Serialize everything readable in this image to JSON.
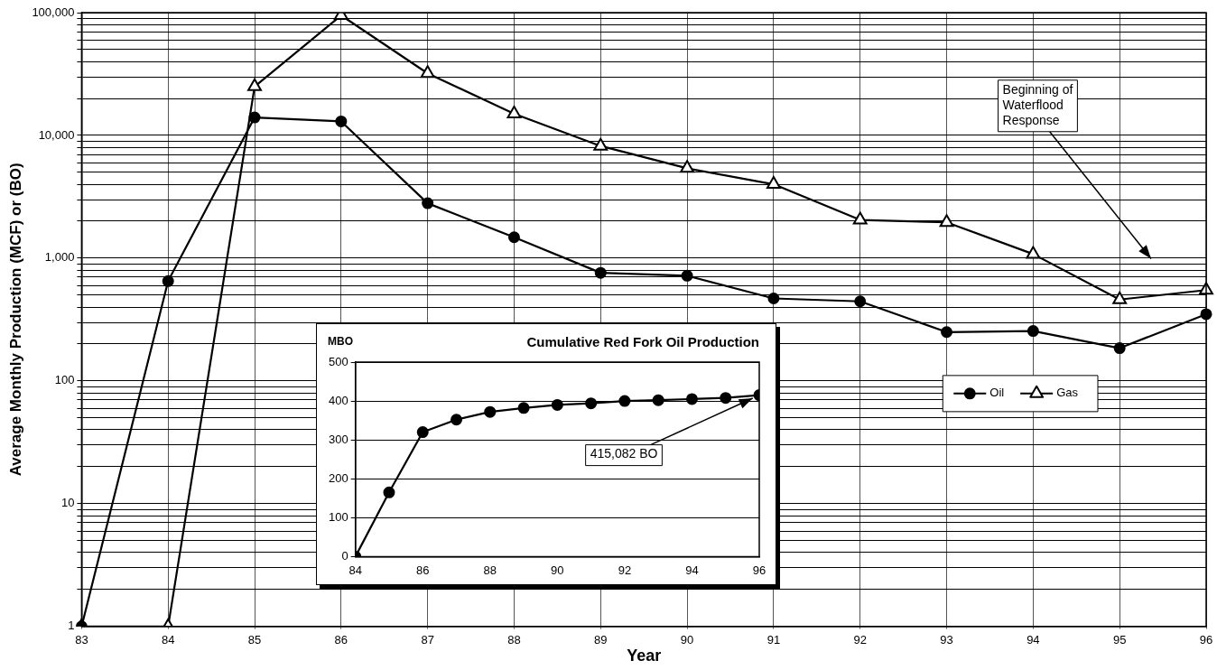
{
  "chart_data": [
    {
      "type": "line",
      "xlabel": "Year",
      "ylabel": "Average Monthly Production (MCF) or (BO)",
      "categories": [
        "83",
        "84",
        "85",
        "86",
        "87",
        "88",
        "89",
        "90",
        "91",
        "92",
        "93",
        "94",
        "95",
        "96"
      ],
      "series": [
        {
          "name": "Oil",
          "color": "#000000",
          "marker": "circle",
          "values": [
            1,
            650,
            14000,
            13000,
            2800,
            1480,
            760,
            720,
            470,
            445,
            250,
            255,
            185,
            350
          ]
        },
        {
          "name": "Gas",
          "color": "#000000",
          "marker": "triangle",
          "values": [
            1,
            1,
            25000,
            95000,
            32000,
            15000,
            8200,
            5400,
            4000,
            2050,
            1960,
            1080,
            460,
            550
          ]
        }
      ],
      "log": "y",
      "ylim": [
        1,
        100000
      ],
      "yticks": [
        1,
        {
          "value": 2,
          "label": null
        },
        {
          "value": 3,
          "label": null
        },
        {
          "value": 4,
          "label": null
        },
        {
          "value": 5,
          "label": null
        },
        {
          "value": 6,
          "label": null
        },
        {
          "value": 7,
          "label": null
        },
        {
          "value": 8,
          "label": null
        },
        {
          "value": 9,
          "label": null
        },
        10,
        {
          "value": 20,
          "label": null
        },
        {
          "value": 30,
          "label": null
        },
        {
          "value": 40,
          "label": null
        },
        {
          "value": 50,
          "label": null
        },
        {
          "value": 60,
          "label": null
        },
        {
          "value": 70,
          "label": null
        },
        {
          "value": 80,
          "label": null
        },
        {
          "value": 90,
          "label": null
        },
        100,
        {
          "value": 200,
          "label": null
        },
        {
          "value": 300,
          "label": null
        },
        {
          "value": 400,
          "label": null
        },
        {
          "value": 500,
          "label": null
        },
        {
          "value": 600,
          "label": null
        },
        {
          "value": 700,
          "label": null
        },
        {
          "value": 800,
          "label": null
        },
        {
          "value": 900,
          "label": null
        },
        {
          "value": 1000,
          "label": "1,000"
        },
        {
          "value": 2000,
          "label": null
        },
        {
          "value": 3000,
          "label": null
        },
        {
          "value": 4000,
          "label": null
        },
        {
          "value": 5000,
          "label": null
        },
        {
          "value": 6000,
          "label": null
        },
        {
          "value": 7000,
          "label": null
        },
        {
          "value": 8000,
          "label": null
        },
        {
          "value": 9000,
          "label": null
        },
        {
          "value": 10000,
          "label": "10,000"
        },
        {
          "value": 20000,
          "label": null
        },
        {
          "value": 30000,
          "label": null
        },
        {
          "value": 40000,
          "label": null
        },
        {
          "value": 50000,
          "label": null
        },
        {
          "value": 60000,
          "label": null
        },
        {
          "value": 70000,
          "label": null
        },
        {
          "value": 80000,
          "label": null
        },
        {
          "value": 90000,
          "label": null
        },
        {
          "value": 100000,
          "label": "100,000"
        }
      ],
      "grid": true,
      "legend": "bottom right",
      "line_style": "solid",
      "annotations": [
        "Beginning of Waterflood Response"
      ]
    },
    {
      "type": "line",
      "title": "Cumulative Red Fork Oil Production",
      "ylabel": "MBO",
      "x": [
        84,
        85,
        86,
        87,
        88,
        89,
        90,
        91,
        92,
        93,
        94,
        95,
        96
      ],
      "values": [
        0,
        165,
        320,
        352,
        372,
        382,
        390,
        394,
        400,
        402,
        405,
        408,
        415
      ],
      "color": "#000000",
      "marker": "circle",
      "line_style": "solid",
      "xlim": [
        84,
        96
      ],
      "xticks": [
        84,
        86,
        88,
        90,
        92,
        94,
        96
      ],
      "ylim": [
        0,
        500
      ],
      "yticks": [
        0,
        100,
        200,
        300,
        400,
        500
      ],
      "grid": "y",
      "annotations": [
        {
          "text": "415,082 BO",
          "x": 96,
          "y": 415
        }
      ]
    }
  ]
}
